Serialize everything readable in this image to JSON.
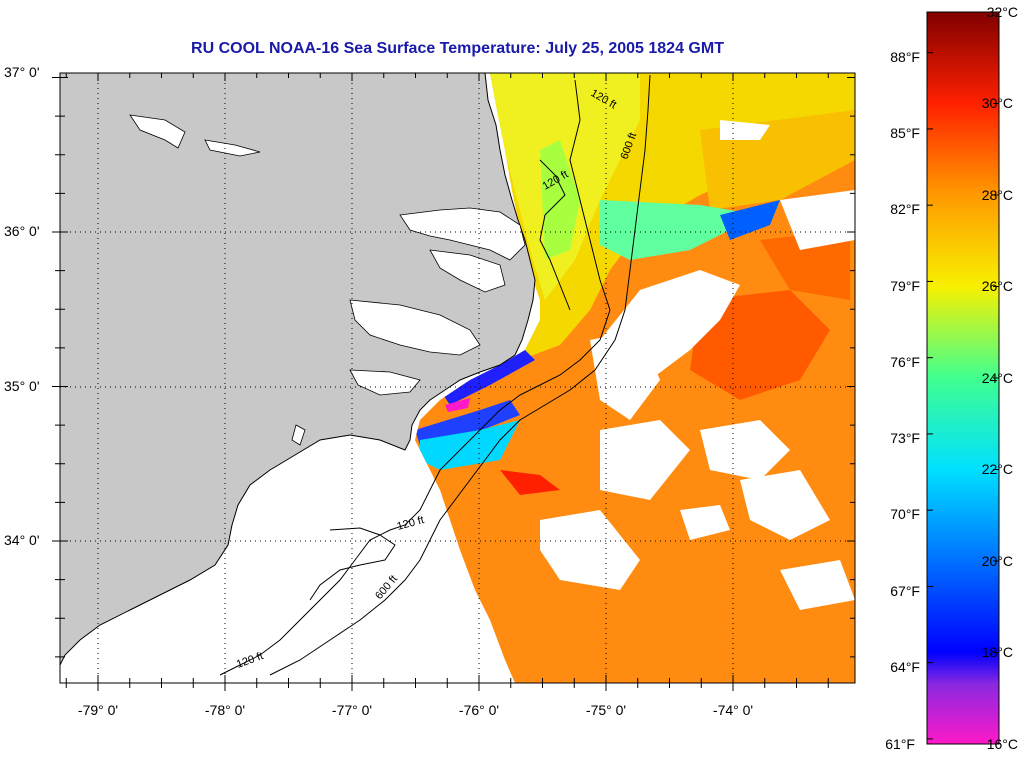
{
  "title": "RU COOL  NOAA-16  Sea Surface Temperature:  July 25, 2005 1824 GMT",
  "map": {
    "longitude_ticks": [
      "-79° 0'",
      "-78° 0'",
      "-77° 0'",
      "-76° 0'",
      "-75° 0'",
      "-74° 0'"
    ],
    "latitude_ticks": [
      "37° 0'",
      "36° 0'",
      "35° 0'",
      "34° 0'"
    ],
    "contour_labels": [
      "120 ft",
      "600 ft"
    ],
    "land_color": "#c8c8c8",
    "cloud_color": "#ffffff"
  },
  "colorbar": {
    "celsius_labels": [
      "32°C",
      "30°C",
      "28°C",
      "26°C",
      "24°C",
      "22°C",
      "20°C",
      "18°C",
      "16°C"
    ],
    "fahrenheit_labels": [
      "88°F",
      "85°F",
      "82°F",
      "79°F",
      "76°F",
      "73°F",
      "70°F",
      "67°F",
      "64°F",
      "61°F"
    ],
    "celsius_min": 16,
    "celsius_max": 32,
    "stops": [
      {
        "c": 16,
        "color": "#ff19c8"
      },
      {
        "c": 17.3,
        "color": "#8a28e0"
      },
      {
        "c": 18,
        "color": "#0000ff"
      },
      {
        "c": 20,
        "color": "#0070ff"
      },
      {
        "c": 22,
        "color": "#00e0ff"
      },
      {
        "c": 24,
        "color": "#40ff90"
      },
      {
        "c": 26,
        "color": "#f8f000"
      },
      {
        "c": 28,
        "color": "#ff9a00"
      },
      {
        "c": 30,
        "color": "#ff2000"
      },
      {
        "c": 32,
        "color": "#800000"
      }
    ]
  }
}
